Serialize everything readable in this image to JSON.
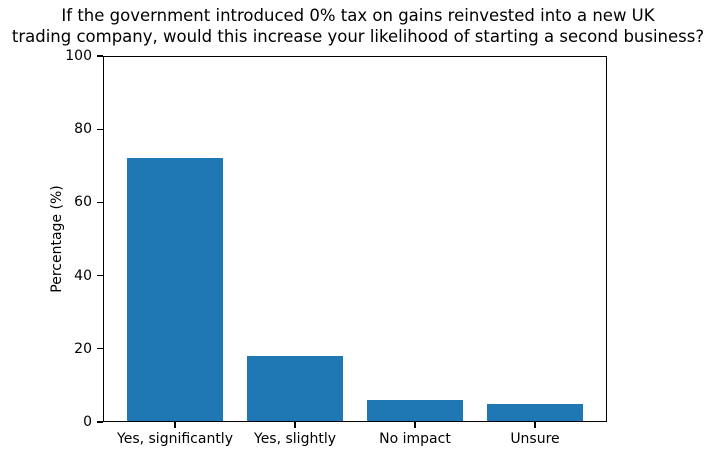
{
  "figure": {
    "background": "#ffffff",
    "text_color": "#000000"
  },
  "chart_data": {
    "type": "bar",
    "title": "If the government introduced 0% tax on gains reinvested into a new UK trading company, would this increase your likelihood of starting a second business?",
    "title_lines": [
      "If the government introduced 0% tax on gains reinvested into a new UK",
      "trading company, would this increase your likelihood of starting a second business?"
    ],
    "categories": [
      "Yes, significantly",
      "Yes, slightly",
      "No impact",
      "Unsure"
    ],
    "values": [
      72,
      18,
      6,
      5
    ],
    "xlabel": "",
    "ylabel": "Percentage (%)",
    "ylim": [
      0,
      100
    ],
    "yticks": [
      0,
      20,
      40,
      60,
      80,
      100
    ],
    "bar_color": "#1f77b4",
    "grid": false,
    "legend": null
  }
}
